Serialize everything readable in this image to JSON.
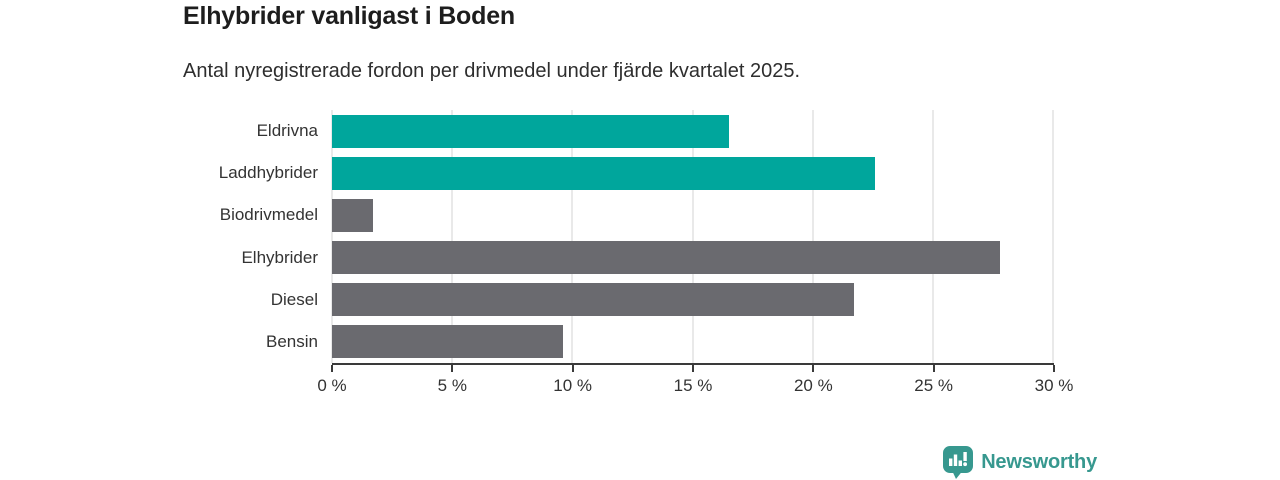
{
  "header": {
    "title": "Elhybrider vanligast i Boden",
    "subtitle": "Antal nyregistrerade fordon per drivmedel under fjärde kvartalet 2025."
  },
  "chart_data": {
    "type": "bar",
    "orientation": "horizontal",
    "title": "Elhybrider vanligast i Boden",
    "subtitle": "Antal nyregistrerade fordon per drivmedel under fjärde kvartalet 2025.",
    "categories": [
      "Eldrivna",
      "Laddhybrider",
      "Biodrivmedel",
      "Elhybrider",
      "Diesel",
      "Bensin"
    ],
    "values": [
      16.5,
      22.6,
      1.7,
      27.8,
      21.7,
      9.6
    ],
    "unit": "%",
    "bar_colors": [
      "#00a69c",
      "#00a69c",
      "#6a6a6f",
      "#6a6a6f",
      "#6a6a6f",
      "#6a6a6f"
    ],
    "xlabel": "",
    "ylabel": "",
    "xlim": [
      0,
      30
    ],
    "x_ticks": [
      0,
      5,
      10,
      15,
      20,
      25,
      30
    ],
    "x_tick_labels": [
      "0 %",
      "5 %",
      "10 %",
      "15 %",
      "20 %",
      "25 %",
      "30 %"
    ],
    "grid": "vertical-light",
    "legend": "none"
  },
  "colors": {
    "teal": "#00a69c",
    "gray": "#6a6a6f",
    "axis": "#3a3a3a",
    "grid": "#e9e9e9",
    "title_text": "#1d1d1d",
    "body_text": "#333333",
    "logo": "#37988f"
  },
  "branding": {
    "logo_text": "Newsworthy",
    "logo_icon": "bar-chart-speech-bubble-icon"
  }
}
